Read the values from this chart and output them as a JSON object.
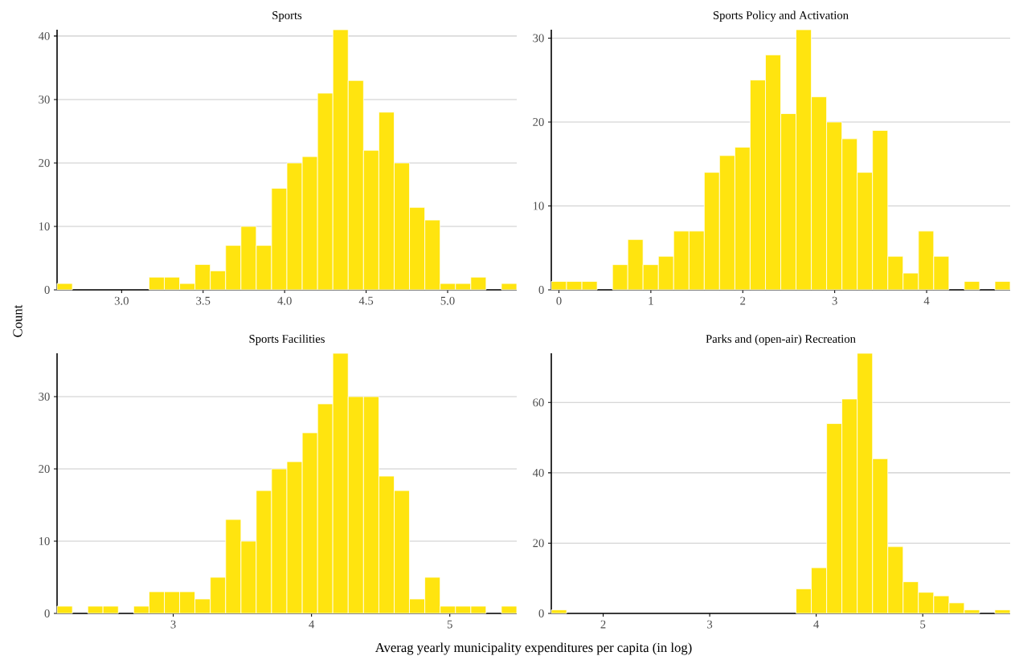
{
  "chart_data": [
    {
      "type": "histogram",
      "title": "Sports",
      "ylabel": "Count",
      "color": "#ffe40f",
      "grid": "y",
      "bins": [
        2.604,
        2.698,
        2.792,
        2.886,
        2.98,
        3.074,
        3.168,
        3.262,
        3.356,
        3.45,
        3.544,
        3.638,
        3.732,
        3.826,
        3.92,
        4.014,
        4.108,
        4.202,
        4.296,
        4.39,
        4.484,
        4.578,
        4.672,
        4.766,
        4.86,
        4.954,
        5.048,
        5.142,
        5.236,
        5.33,
        5.424
      ],
      "values": [
        1,
        0,
        0,
        0,
        0,
        0,
        2,
        2,
        1,
        4,
        3,
        7,
        10,
        7,
        16,
        20,
        21,
        31,
        41,
        33,
        22,
        28,
        20,
        13,
        11,
        1,
        1,
        2,
        0,
        1
      ],
      "xlim": [
        2.604,
        5.424
      ],
      "ylim": [
        0,
        41
      ],
      "xticks": [
        {
          "value": 3,
          "label": "3.0"
        },
        3.5,
        {
          "value": 4,
          "label": "4.0"
        },
        4.5,
        {
          "value": 5,
          "label": "5.0"
        }
      ],
      "yticks": [
        0,
        10,
        20,
        30,
        40
      ]
    },
    {
      "type": "histogram",
      "title": "Sports Policy and Activation",
      "color": "#ffe40f",
      "grid": "y",
      "bins": [
        -0.083,
        0.083,
        0.25,
        0.416,
        0.583,
        0.749,
        0.915,
        1.082,
        1.248,
        1.415,
        1.581,
        1.747,
        1.914,
        2.08,
        2.247,
        2.413,
        2.579,
        2.746,
        2.912,
        3.079,
        3.245,
        3.411,
        3.578,
        3.744,
        3.911,
        4.077,
        4.243,
        4.41,
        4.576,
        4.743,
        4.909
      ],
      "values": [
        1,
        1,
        1,
        0,
        3,
        6,
        3,
        4,
        7,
        7,
        14,
        16,
        17,
        25,
        28,
        21,
        31,
        23,
        20,
        18,
        14,
        19,
        4,
        2,
        7,
        4,
        0,
        1,
        0,
        1
      ],
      "xlim": [
        -0.083,
        4.909
      ],
      "ylim": [
        0,
        31
      ],
      "xticks": [
        0,
        1,
        2,
        3,
        4
      ],
      "yticks": [
        0,
        10,
        20,
        30
      ]
    },
    {
      "type": "histogram",
      "title": "Sports Facilities",
      "xlabel": "Averag yearly municipality expenditures per capita (in log)",
      "color": "#ffe40f",
      "grid": "y",
      "bins": [
        2.16,
        2.271,
        2.382,
        2.492,
        2.603,
        2.714,
        2.825,
        2.936,
        3.046,
        3.157,
        3.268,
        3.379,
        3.49,
        3.6,
        3.711,
        3.822,
        3.933,
        4.044,
        4.154,
        4.265,
        4.376,
        4.487,
        4.598,
        4.708,
        4.819,
        4.93,
        5.041,
        5.152,
        5.262,
        5.373,
        5.484
      ],
      "values": [
        1,
        0,
        1,
        1,
        0,
        1,
        3,
        3,
        3,
        2,
        5,
        13,
        10,
        17,
        20,
        21,
        25,
        29,
        36,
        30,
        30,
        19,
        17,
        2,
        5,
        1,
        1,
        1,
        0,
        1
      ],
      "xlim": [
        2.16,
        5.484
      ],
      "ylim": [
        0,
        36
      ],
      "xticks": [
        3,
        4,
        5
      ],
      "yticks": [
        0,
        10,
        20,
        30
      ]
    },
    {
      "type": "histogram",
      "title": "Parks and (open-air) Recreation",
      "color": "#ffe40f",
      "grid": "y",
      "bins": [
        1.513,
        1.657,
        1.8,
        1.944,
        2.087,
        2.231,
        2.375,
        2.518,
        2.662,
        2.805,
        2.949,
        3.093,
        3.236,
        3.38,
        3.523,
        3.667,
        3.811,
        3.954,
        4.098,
        4.241,
        4.385,
        4.529,
        4.672,
        4.816,
        4.959,
        5.103,
        5.247,
        5.39,
        5.534,
        5.677,
        5.821
      ],
      "values": [
        1,
        0,
        0,
        0,
        0,
        0,
        0,
        0,
        0,
        0,
        0,
        0,
        0,
        0,
        0,
        0,
        7,
        13,
        54,
        61,
        74,
        44,
        19,
        9,
        6,
        5,
        3,
        1,
        0,
        1
      ],
      "xlim": [
        1.513,
        5.821
      ],
      "ylim": [
        0,
        74
      ],
      "xticks": [
        2,
        3,
        4,
        5
      ],
      "yticks": [
        0,
        20,
        40,
        60
      ]
    }
  ]
}
